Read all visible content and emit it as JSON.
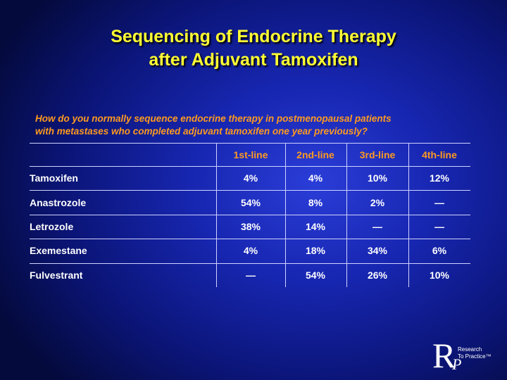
{
  "header": {
    "title_lines": [
      "Sequencing of Endocrine Therapy",
      "after Adjuvant Tamoxifen"
    ]
  },
  "question_lines": [
    "How do you normally sequence endocrine therapy in postmenopausal patients",
    "with metastases who completed adjuvant tamoxifen one year previously?"
  ],
  "table": {
    "columns": [
      "1st-line",
      "2nd-line",
      "3rd-line",
      "4th-line"
    ],
    "rows": [
      [
        "Tamoxifen",
        "4%",
        "4%",
        "10%",
        "12%"
      ],
      [
        "Anastrozole",
        "54%",
        "8%",
        "2%",
        "—"
      ],
      [
        "Letrozole",
        "38%",
        "14%",
        "—",
        "—"
      ],
      [
        "Exemestane",
        "4%",
        "18%",
        "34%",
        "6%"
      ],
      [
        "Fulvestrant",
        "—",
        "54%",
        "26%",
        "10%"
      ]
    ]
  },
  "logo": {
    "letter_r": "R",
    "letter_p": "P",
    "line1": "Research",
    "line2": "To Practice™"
  }
}
